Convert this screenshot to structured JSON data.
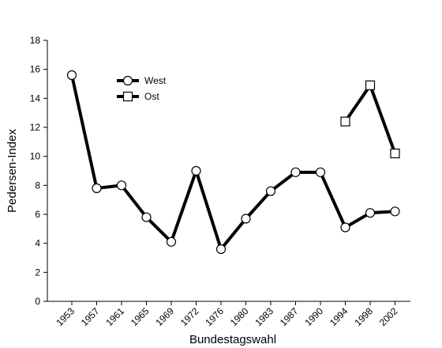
{
  "chart_data": {
    "type": "line",
    "title": "",
    "xlabel": "Bundestagswahl",
    "ylabel": "Pedersen-Index",
    "categories": [
      "1953",
      "1957",
      "1961",
      "1965",
      "1969",
      "1972",
      "1976",
      "1980",
      "1983",
      "1987",
      "1990",
      "1994",
      "1998",
      "2002"
    ],
    "ylim": [
      0,
      18
    ],
    "yticks": [
      0,
      2,
      4,
      6,
      8,
      10,
      12,
      14,
      16,
      18
    ],
    "grid": false,
    "legend_position": "top-left",
    "series": [
      {
        "name": "West",
        "marker": "circle",
        "values": [
          15.6,
          7.8,
          8.0,
          5.8,
          4.1,
          9.0,
          3.6,
          5.7,
          7.6,
          8.9,
          8.9,
          5.1,
          6.1,
          6.2
        ]
      },
      {
        "name": "Ost",
        "marker": "square",
        "values": [
          null,
          null,
          null,
          null,
          null,
          null,
          null,
          null,
          null,
          null,
          null,
          12.4,
          14.9,
          10.2
        ]
      }
    ],
    "colors": {
      "line": "#000000",
      "marker_fill": "#ffffff"
    }
  }
}
